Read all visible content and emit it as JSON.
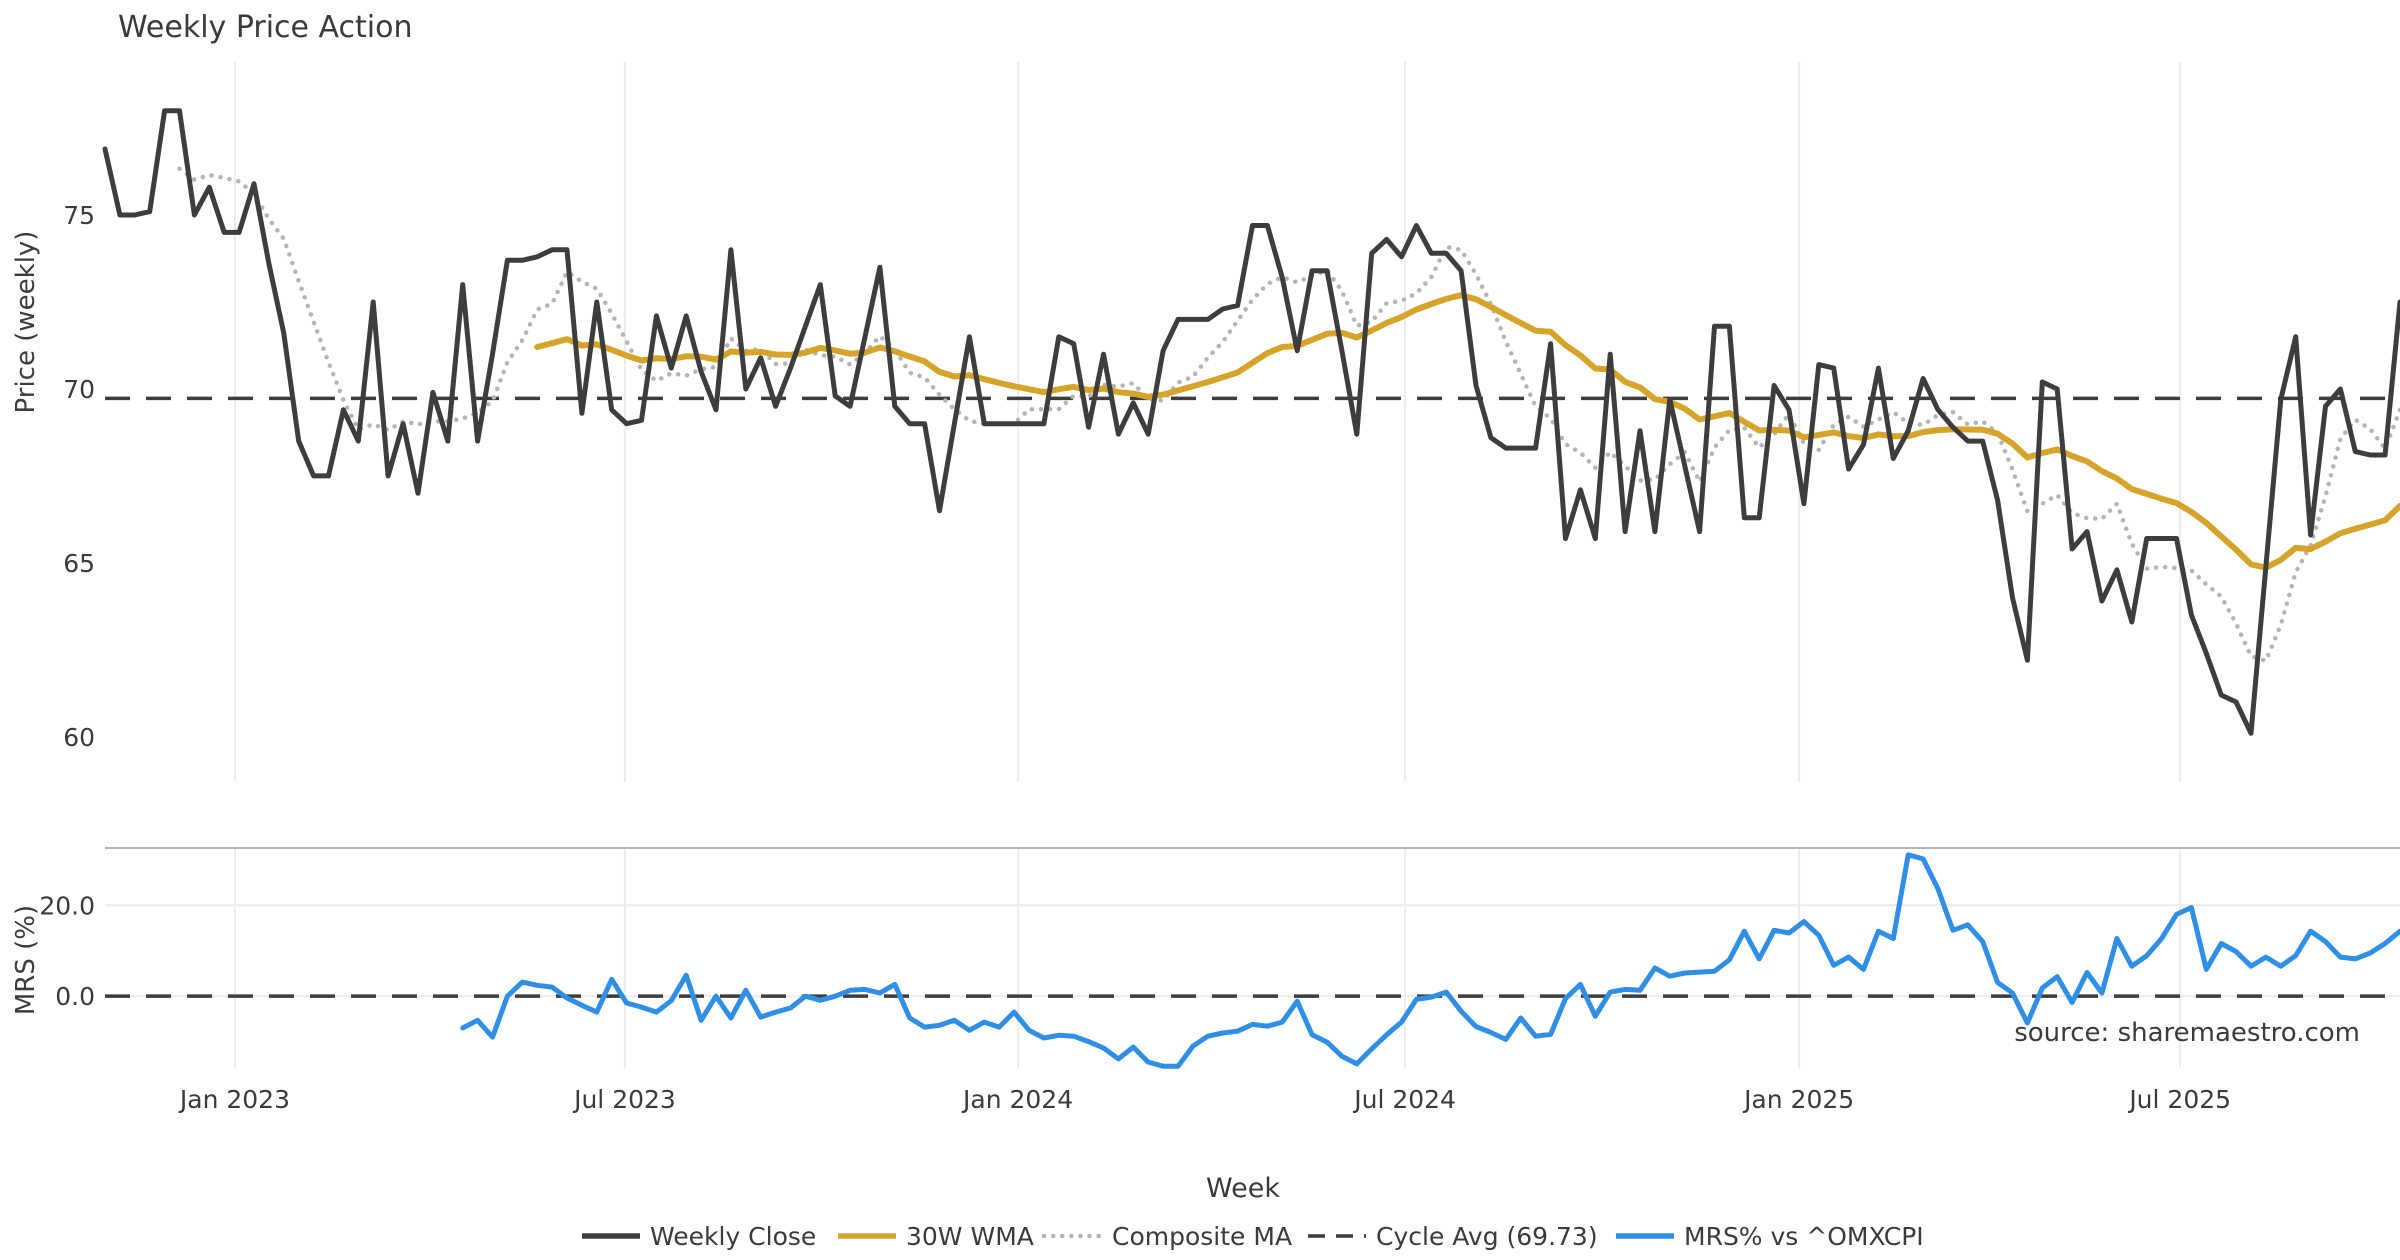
{
  "title": "Weekly Price Action",
  "source": "source: sharemaestro.com",
  "colors": {
    "close": "#3d3d3d",
    "wma": "#d7a42b",
    "composite": "#b5b5b5",
    "cycle": "#3d3d3d",
    "mrs": "#2f8ee6",
    "grid": "#ececec",
    "spine": "#b3b3b3",
    "text": "#3b3b3b",
    "muted": "#9b9b9b",
    "title_color": "#3a3a3a"
  },
  "legend": [
    {
      "label": "Weekly Close",
      "style": "solid",
      "color": "#3d3d3d"
    },
    {
      "label": "30W WMA",
      "style": "solid",
      "color": "#d7a42b"
    },
    {
      "label": "Composite MA",
      "style": "dotted",
      "color": "#b5b5b5"
    },
    {
      "label": "Cycle Avg (69.73)",
      "style": "dashed",
      "color": "#3d3d3d"
    },
    {
      "label": "MRS% vs ^OMXCPI",
      "style": "solid",
      "color": "#2f8ee6"
    }
  ],
  "chart_data": {
    "type": "line",
    "title": "Weekly Price Action",
    "x_axis": {
      "label": "Week",
      "n_weeks": 155,
      "ticks": [
        {
          "label": "Jan 2023",
          "week": 8.72
        },
        {
          "label": "Jul 2023",
          "week": 34.89
        },
        {
          "label": "Jan 2024",
          "week": 61.27
        },
        {
          "label": "Jul 2024",
          "week": 87.24
        },
        {
          "label": "Jan 2025",
          "week": 113.68
        },
        {
          "label": "Jul 2025",
          "week": 139.25
        }
      ]
    },
    "panels": [
      {
        "ylabel": "Price (weekly)",
        "ylim": [
          58.7,
          79.4
        ],
        "yticks": [
          {
            "label": "75",
            "value": 75
          },
          {
            "label": "70",
            "value": 70
          },
          {
            "label": "65",
            "value": 65
          },
          {
            "label": "60",
            "value": 60
          }
        ],
        "grid_horizontal": false,
        "series": [
          {
            "name": "Weekly Close",
            "kind": "data",
            "start_week": 0,
            "values": [
              76.9,
              75.0,
              75.0,
              75.1,
              78.0,
              78.0,
              75.0,
              75.8,
              74.5,
              74.5,
              75.9,
              73.6,
              71.6,
              68.5,
              67.5,
              67.5,
              69.4,
              68.5,
              72.5,
              67.5,
              69.0,
              67.0,
              69.9,
              68.5,
              73.0,
              68.5,
              71.0,
              73.7,
              73.7,
              73.8,
              74.0,
              74.0,
              69.3,
              72.5,
              69.4,
              69.0,
              69.1,
              72.1,
              70.6,
              72.1,
              70.5,
              69.4,
              74.0,
              70.0,
              70.9,
              69.5,
              70.6,
              71.8,
              73.0,
              69.8,
              69.5,
              71.5,
              73.5,
              69.5,
              69.0,
              69.0,
              66.5,
              69.0,
              71.5,
              69.0,
              69.0,
              69.0,
              69.0,
              69.0,
              71.5,
              71.3,
              68.9,
              71.0,
              68.7,
              69.6,
              68.7,
              71.1,
              72.0,
              72.0,
              72.0,
              72.3,
              72.4,
              74.7,
              74.7,
              73.2,
              71.1,
              73.4,
              73.4,
              71.1,
              68.7,
              73.9,
              74.3,
              73.8,
              74.7,
              73.9,
              73.9,
              73.4,
              70.1,
              68.6,
              68.3,
              68.3,
              68.3,
              71.3,
              65.7,
              67.1,
              65.7,
              71.0,
              65.9,
              68.8,
              65.9,
              69.7,
              67.8,
              65.9,
              71.8,
              71.8,
              66.3,
              66.3,
              70.1,
              69.4,
              66.7,
              70.7,
              70.6,
              67.7,
              68.4,
              70.6,
              68.0,
              68.8,
              70.3,
              69.4,
              68.9,
              68.5,
              68.5,
              66.8,
              64.0,
              62.2,
              70.2,
              70.0,
              65.4,
              65.9,
              63.9,
              64.8,
              63.3,
              65.7,
              65.7,
              65.7,
              63.5,
              62.4,
              61.2,
              61.0,
              60.1,
              64.9,
              69.7,
              71.5,
              65.8,
              69.5,
              70.0,
              68.2,
              68.1,
              68.1,
              72.5
            ]
          },
          {
            "name": "30W WMA",
            "kind": "derived",
            "derive": "wma",
            "window": 30,
            "of": "Weekly Close"
          },
          {
            "name": "Composite MA",
            "kind": "derived",
            "derive": "sma",
            "window": 6,
            "of": "Weekly Close"
          },
          {
            "name": "Cycle Avg (69.73)",
            "kind": "constant",
            "value": 69.73
          }
        ]
      },
      {
        "ylabel": "MRS (%)",
        "ylim": [
          -15.8,
          32.6
        ],
        "yticks": [
          {
            "label": "20.0",
            "value": 20
          },
          {
            "label": "0.0",
            "value": 0
          }
        ],
        "grid_horizontal": true,
        "zero_dashed_line": 0,
        "series": [
          {
            "name": "MRS% vs ^OMXCPI",
            "kind": "data",
            "start_week": 24,
            "values": [
              -7.0,
              -5.3,
              -9.0,
              0.0,
              3.1,
              2.4,
              2.0,
              -0.4,
              -2.0,
              -3.5,
              3.7,
              -1.5,
              -2.4,
              -3.5,
              -1.0,
              4.6,
              -5.3,
              0.0,
              -4.8,
              1.3,
              -4.6,
              -3.5,
              -2.6,
              0.0,
              -0.9,
              0.0,
              1.3,
              1.5,
              0.7,
              2.6,
              -4.8,
              -6.8,
              -6.4,
              -5.3,
              -7.5,
              -5.7,
              -6.8,
              -3.5,
              -7.5,
              -9.2,
              -8.6,
              -8.8,
              -10.0,
              -11.4,
              -13.8,
              -11.2,
              -14.5,
              -15.4,
              -15.4,
              -11.0,
              -8.8,
              -8.1,
              -7.7,
              -6.2,
              -6.6,
              -5.7,
              -1.1,
              -8.5,
              -10.1,
              -13.2,
              -14.9,
              -11.6,
              -8.5,
              -5.7,
              -0.7,
              -0.2,
              0.9,
              -3.3,
              -6.7,
              -8.0,
              -9.5,
              -4.8,
              -8.8,
              -8.4,
              -0.5,
              2.6,
              -4.4,
              0.9,
              1.5,
              1.3,
              6.2,
              4.4,
              5.1,
              5.3,
              5.5,
              8.0,
              14.3,
              8.2,
              14.5,
              13.9,
              16.4,
              13.4,
              6.8,
              8.6,
              5.9,
              14.3,
              12.7,
              31.1,
              30.2,
              23.6,
              14.5,
              15.7,
              12.0,
              3.0,
              0.7,
              -5.9,
              1.8,
              4.3,
              -1.4,
              5.2,
              0.7,
              12.7,
              6.6,
              8.9,
              12.7,
              18.0,
              19.5,
              5.9,
              11.6,
              9.8,
              6.6,
              8.6,
              6.6,
              8.9,
              14.3,
              12.0,
              8.6,
              8.2,
              9.5,
              11.6,
              14.3
            ]
          }
        ]
      }
    ]
  }
}
